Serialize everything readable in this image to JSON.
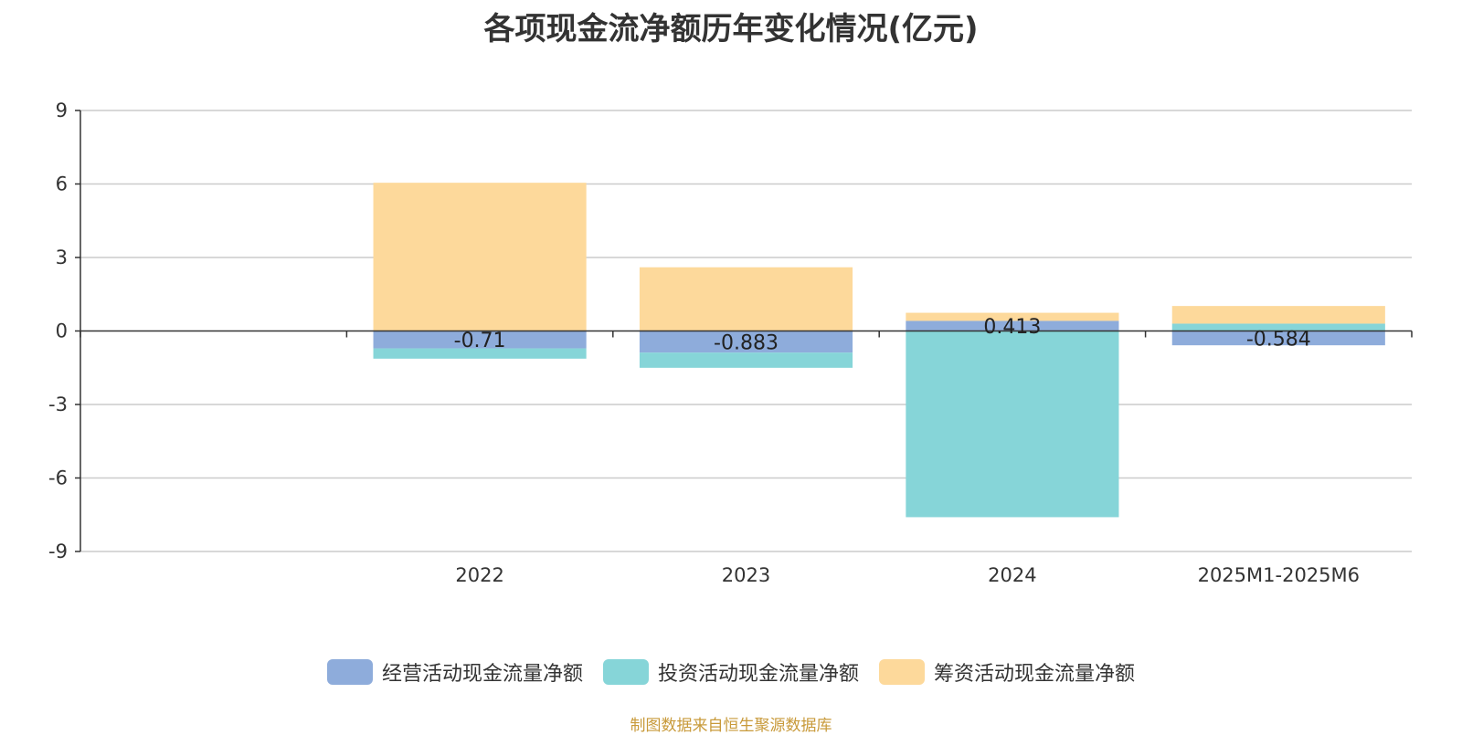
{
  "chart_data": {
    "type": "bar",
    "stacked": true,
    "title": "各项现金流净额历年变化情况(亿元)",
    "categories": [
      "",
      "2022",
      "2023",
      "2024",
      "2025M1-2025M6"
    ],
    "series": [
      {
        "name": "经营活动现金流量净额",
        "color": "#8EACDB",
        "values": [
          null,
          -0.71,
          -0.883,
          0.413,
          -0.584
        ],
        "labels": [
          "",
          "-0.71",
          "-0.883",
          "0.413",
          "-0.584"
        ]
      },
      {
        "name": "投资活动现金流量净额",
        "color": "#86D5D8",
        "values": [
          null,
          -0.42,
          -0.62,
          -7.6,
          0.3
        ]
      },
      {
        "name": "筹资活动现金流量净额",
        "color": "#FDD99B",
        "values": [
          null,
          6.05,
          2.6,
          0.33,
          0.72
        ]
      }
    ],
    "yticks": [
      9,
      6,
      3,
      0,
      -3,
      -6,
      -9
    ],
    "ylim": [
      -9,
      9
    ],
    "grid": true,
    "legend_position": "bottom"
  },
  "source_note": "制图数据来自恒生聚源数据库"
}
